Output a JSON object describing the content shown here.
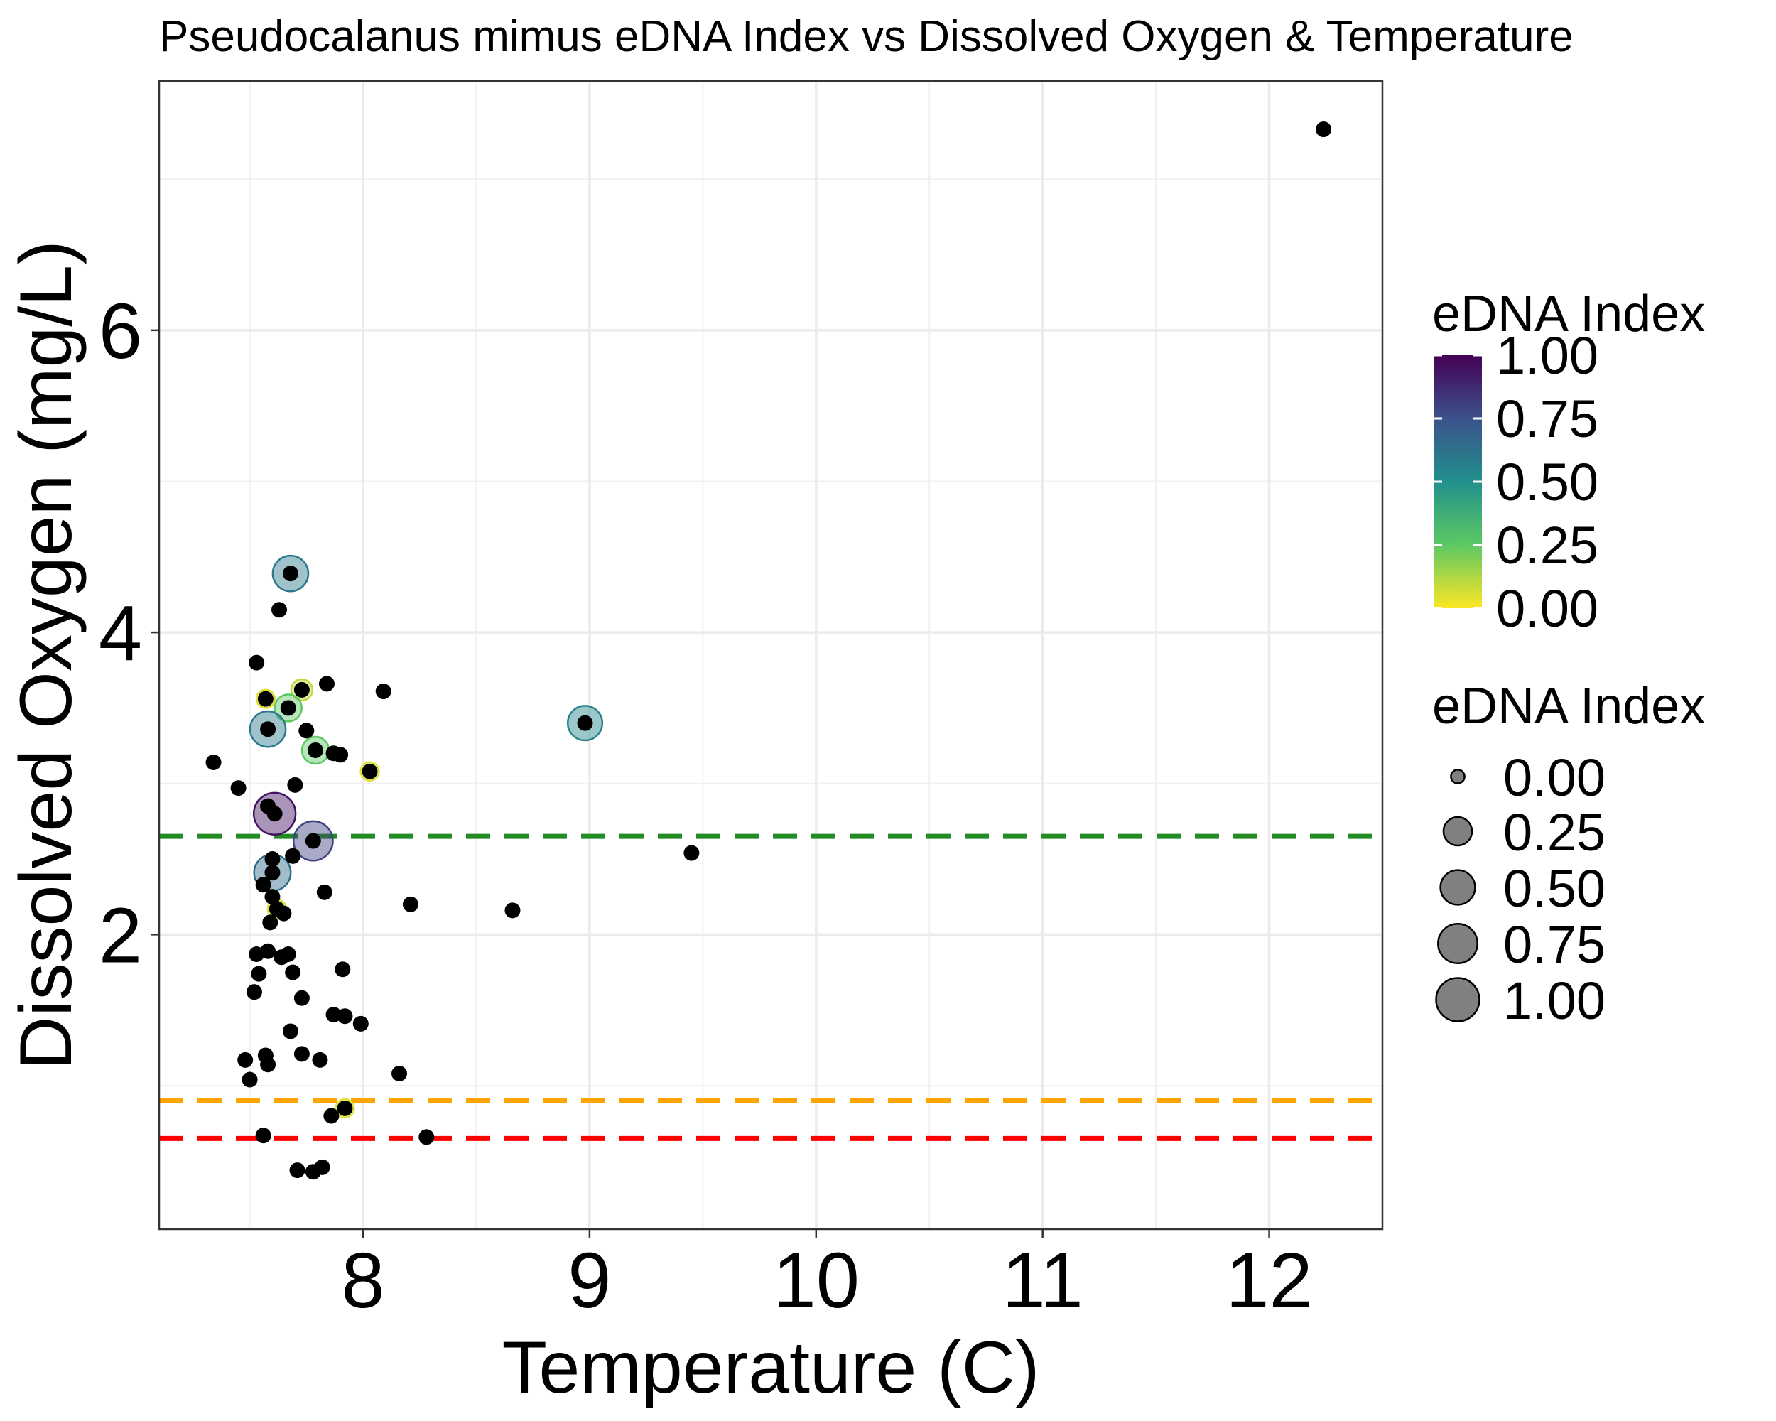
{
  "chart_data": {
    "type": "scatter",
    "title": "Pseudocalanus mimus eDNA Index vs Dissolved Oxygen & Temperature",
    "xlabel": "Temperature (C)",
    "ylabel": "Dissolved Oxygen (mg/L)",
    "xlim": [
      7.1,
      12.5
    ],
    "ylim": [
      0.05,
      7.65
    ],
    "x_ticks": [
      8,
      9,
      10,
      11,
      12
    ],
    "x_tick_labels": [
      "8",
      "9",
      "10",
      "11",
      "12"
    ],
    "y_ticks": [
      2,
      4,
      6
    ],
    "y_tick_labels": [
      "2",
      "4",
      "6"
    ],
    "x_minor_ticks": [
      7.5,
      8.5,
      9.5,
      10.5,
      11.5
    ],
    "y_minor_ticks": [
      1,
      3,
      5,
      7
    ],
    "grid": true,
    "reference_lines": [
      {
        "axis": "y",
        "value": 2.65,
        "color": "#228B22",
        "style": "dashed"
      },
      {
        "axis": "y",
        "value": 0.9,
        "color": "#FFA500",
        "style": "dashed"
      },
      {
        "axis": "y",
        "value": 0.65,
        "color": "#FF0000",
        "style": "dashed"
      }
    ],
    "legends": {
      "color": {
        "title": "eDNA Index",
        "labels": [
          "1.00",
          "0.75",
          "0.50",
          "0.25",
          "0.00"
        ],
        "colors": [
          "#440154",
          "#3B528B",
          "#21908C",
          "#5DC863",
          "#FDE725"
        ],
        "position": "right"
      },
      "size": {
        "title": "eDNA Index",
        "labels": [
          "0.00",
          "0.25",
          "0.50",
          "0.75",
          "1.00"
        ],
        "values": [
          0,
          0.25,
          0.5,
          0.75,
          1.0
        ],
        "color": "#808080",
        "position": "right"
      }
    },
    "points": [
      {
        "x": 12.24,
        "y": 7.33,
        "edna": null
      },
      {
        "x": 7.68,
        "y": 4.39,
        "edna": 0.6
      },
      {
        "x": 7.63,
        "y": 4.15,
        "edna": null
      },
      {
        "x": 7.53,
        "y": 3.8,
        "edna": 0.0
      },
      {
        "x": 7.57,
        "y": 3.56,
        "edna": 0.05
      },
      {
        "x": 7.73,
        "y": 3.62,
        "edna": 0.1
      },
      {
        "x": 7.84,
        "y": 3.66,
        "edna": null
      },
      {
        "x": 8.09,
        "y": 3.61,
        "edna": null
      },
      {
        "x": 7.67,
        "y": 3.5,
        "edna": 0.25
      },
      {
        "x": 7.58,
        "y": 3.36,
        "edna": 0.6
      },
      {
        "x": 7.75,
        "y": 3.35,
        "edna": null
      },
      {
        "x": 8.98,
        "y": 3.4,
        "edna": 0.55
      },
      {
        "x": 7.79,
        "y": 3.22,
        "edna": 0.25
      },
      {
        "x": 7.87,
        "y": 3.2,
        "edna": null
      },
      {
        "x": 7.9,
        "y": 3.19,
        "edna": null
      },
      {
        "x": 7.34,
        "y": 3.14,
        "edna": null
      },
      {
        "x": 8.03,
        "y": 3.08,
        "edna": 0.05
      },
      {
        "x": 7.45,
        "y": 2.97,
        "edna": null
      },
      {
        "x": 7.7,
        "y": 2.99,
        "edna": null
      },
      {
        "x": 7.61,
        "y": 2.8,
        "edna": 0.95
      },
      {
        "x": 7.58,
        "y": 2.85,
        "edna": null
      },
      {
        "x": 7.78,
        "y": 2.62,
        "edna": 0.8
      },
      {
        "x": 9.45,
        "y": 2.54,
        "edna": 0.0
      },
      {
        "x": 7.69,
        "y": 2.52,
        "edna": null
      },
      {
        "x": 7.6,
        "y": 2.5,
        "edna": null
      },
      {
        "x": 7.6,
        "y": 2.41,
        "edna": 0.65
      },
      {
        "x": 7.56,
        "y": 2.33,
        "edna": null
      },
      {
        "x": 7.83,
        "y": 2.28,
        "edna": 0.0
      },
      {
        "x": 7.6,
        "y": 2.25,
        "edna": null
      },
      {
        "x": 8.21,
        "y": 2.2,
        "edna": 0.0
      },
      {
        "x": 8.66,
        "y": 2.16,
        "edna": null
      },
      {
        "x": 7.62,
        "y": 2.17,
        "edna": 0.05
      },
      {
        "x": 7.65,
        "y": 2.14,
        "edna": null
      },
      {
        "x": 7.59,
        "y": 2.08,
        "edna": 0.0
      },
      {
        "x": 7.58,
        "y": 1.89,
        "edna": null
      },
      {
        "x": 7.53,
        "y": 1.87,
        "edna": 0.0
      },
      {
        "x": 7.67,
        "y": 1.87,
        "edna": 0.0
      },
      {
        "x": 7.64,
        "y": 1.85,
        "edna": null
      },
      {
        "x": 7.91,
        "y": 1.77,
        "edna": null
      },
      {
        "x": 7.54,
        "y": 1.74,
        "edna": 0.0
      },
      {
        "x": 7.69,
        "y": 1.75,
        "edna": null
      },
      {
        "x": 7.52,
        "y": 1.62,
        "edna": null
      },
      {
        "x": 7.73,
        "y": 1.58,
        "edna": null
      },
      {
        "x": 7.87,
        "y": 1.47,
        "edna": null
      },
      {
        "x": 7.92,
        "y": 1.46,
        "edna": null
      },
      {
        "x": 7.99,
        "y": 1.41,
        "edna": 0.0
      },
      {
        "x": 7.68,
        "y": 1.36,
        "edna": null
      },
      {
        "x": 7.73,
        "y": 1.21,
        "edna": null
      },
      {
        "x": 7.57,
        "y": 1.2,
        "edna": null
      },
      {
        "x": 7.48,
        "y": 1.17,
        "edna": null
      },
      {
        "x": 7.81,
        "y": 1.17,
        "edna": null
      },
      {
        "x": 7.58,
        "y": 1.14,
        "edna": null
      },
      {
        "x": 8.16,
        "y": 1.08,
        "edna": null
      },
      {
        "x": 7.5,
        "y": 1.04,
        "edna": 0.0
      },
      {
        "x": 7.92,
        "y": 0.85,
        "edna": 0.05
      },
      {
        "x": 7.86,
        "y": 0.8,
        "edna": null
      },
      {
        "x": 7.56,
        "y": 0.67,
        "edna": null
      },
      {
        "x": 8.28,
        "y": 0.66,
        "edna": null
      },
      {
        "x": 7.71,
        "y": 0.44,
        "edna": 0.0
      },
      {
        "x": 7.82,
        "y": 0.46,
        "edna": null
      },
      {
        "x": 7.78,
        "y": 0.43,
        "edna": null
      }
    ]
  }
}
